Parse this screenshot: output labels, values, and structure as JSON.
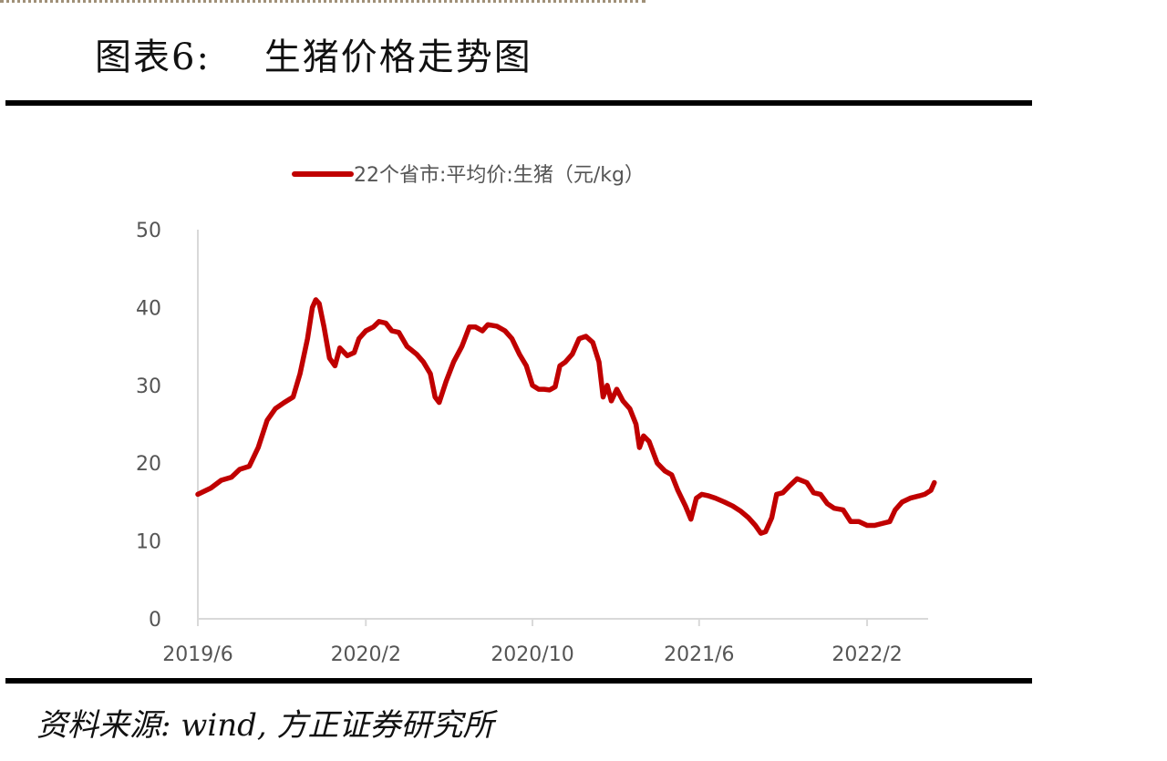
{
  "header": {
    "figure_title": "图表6:    生猪价格走势图"
  },
  "footer": {
    "source": "资料来源: wind, 方正证券研究所"
  },
  "chart_data": {
    "type": "line",
    "title": "",
    "xlabel": "",
    "ylabel": "",
    "ylim": [
      0,
      50
    ],
    "yticks": [
      0,
      10,
      20,
      30,
      40,
      50
    ],
    "xlim": [
      "2019-06",
      "2022-05"
    ],
    "xticks": [
      {
        "date": "2019-06",
        "label": "2019/6"
      },
      {
        "date": "2020-02",
        "label": "2020/2"
      },
      {
        "date": "2020-10",
        "label": "2020/10"
      },
      {
        "date": "2021-06",
        "label": "2021/6"
      },
      {
        "date": "2022-02",
        "label": "2022/2"
      }
    ],
    "grid": false,
    "legend_position": "top",
    "series": [
      {
        "name": "22个省市:平均价:生猪（元/kg）",
        "color": "#c00000",
        "points": [
          [
            "2019-06-01",
            16.0
          ],
          [
            "2019-06-20",
            16.8
          ],
          [
            "2019-07-05",
            17.8
          ],
          [
            "2019-07-20",
            18.2
          ],
          [
            "2019-08-01",
            19.2
          ],
          [
            "2019-08-15",
            19.6
          ],
          [
            "2019-08-28",
            22.0
          ],
          [
            "2019-09-10",
            25.5
          ],
          [
            "2019-09-22",
            27.0
          ],
          [
            "2019-10-05",
            27.8
          ],
          [
            "2019-10-18",
            28.5
          ],
          [
            "2019-10-28",
            31.5
          ],
          [
            "2019-11-08",
            36.0
          ],
          [
            "2019-11-15",
            40.0
          ],
          [
            "2019-11-20",
            41.0
          ],
          [
            "2019-11-25",
            40.5
          ],
          [
            "2019-12-02",
            37.5
          ],
          [
            "2019-12-10",
            33.5
          ],
          [
            "2019-12-18",
            32.5
          ],
          [
            "2019-12-25",
            34.8
          ],
          [
            "2020-01-05",
            33.8
          ],
          [
            "2020-01-15",
            34.2
          ],
          [
            "2020-01-22",
            36.0
          ],
          [
            "2020-02-01",
            37.0
          ],
          [
            "2020-02-12",
            37.5
          ],
          [
            "2020-02-20",
            38.2
          ],
          [
            "2020-03-01",
            38.0
          ],
          [
            "2020-03-10",
            37.0
          ],
          [
            "2020-03-20",
            36.8
          ],
          [
            "2020-04-01",
            35.0
          ],
          [
            "2020-04-15",
            34.0
          ],
          [
            "2020-04-25",
            33.0
          ],
          [
            "2020-05-05",
            31.5
          ],
          [
            "2020-05-12",
            28.5
          ],
          [
            "2020-05-18",
            27.8
          ],
          [
            "2020-05-28",
            30.5
          ],
          [
            "2020-06-08",
            33.0
          ],
          [
            "2020-06-20",
            35.0
          ],
          [
            "2020-07-01",
            37.5
          ],
          [
            "2020-07-10",
            37.5
          ],
          [
            "2020-07-20",
            37.0
          ],
          [
            "2020-07-28",
            37.8
          ],
          [
            "2020-08-10",
            37.6
          ],
          [
            "2020-08-22",
            37.0
          ],
          [
            "2020-09-01",
            36.0
          ],
          [
            "2020-09-12",
            34.0
          ],
          [
            "2020-09-22",
            32.5
          ],
          [
            "2020-10-01",
            30.0
          ],
          [
            "2020-10-10",
            29.5
          ],
          [
            "2020-10-18",
            29.5
          ],
          [
            "2020-10-26",
            29.4
          ],
          [
            "2020-11-03",
            29.8
          ],
          [
            "2020-11-10",
            32.5
          ],
          [
            "2020-11-18",
            33.0
          ],
          [
            "2020-11-28",
            34.0
          ],
          [
            "2020-12-08",
            36.0
          ],
          [
            "2020-12-18",
            36.3
          ],
          [
            "2020-12-28",
            35.5
          ],
          [
            "2021-01-06",
            33.0
          ],
          [
            "2021-01-12",
            28.5
          ],
          [
            "2021-01-18",
            30.0
          ],
          [
            "2021-01-24",
            28.0
          ],
          [
            "2021-02-01",
            29.5
          ],
          [
            "2021-02-10",
            28.0
          ],
          [
            "2021-02-20",
            27.0
          ],
          [
            "2021-03-01",
            25.0
          ],
          [
            "2021-03-06",
            22.0
          ],
          [
            "2021-03-12",
            23.5
          ],
          [
            "2021-03-20",
            22.8
          ],
          [
            "2021-04-01",
            20.0
          ],
          [
            "2021-04-12",
            19.0
          ],
          [
            "2021-04-22",
            18.5
          ],
          [
            "2021-05-01",
            16.5
          ],
          [
            "2021-05-12",
            14.5
          ],
          [
            "2021-05-20",
            12.8
          ],
          [
            "2021-05-28",
            15.5
          ],
          [
            "2021-06-05",
            16.0
          ],
          [
            "2021-06-15",
            15.8
          ],
          [
            "2021-06-25",
            15.5
          ],
          [
            "2021-07-08",
            15.0
          ],
          [
            "2021-07-20",
            14.5
          ],
          [
            "2021-08-01",
            13.8
          ],
          [
            "2021-08-12",
            13.0
          ],
          [
            "2021-08-22",
            12.0
          ],
          [
            "2021-08-30",
            11.0
          ],
          [
            "2021-09-06",
            11.2
          ],
          [
            "2021-09-15",
            13.0
          ],
          [
            "2021-09-22",
            16.0
          ],
          [
            "2021-10-01",
            16.2
          ],
          [
            "2021-10-10",
            17.0
          ],
          [
            "2021-10-22",
            18.0
          ],
          [
            "2021-11-05",
            17.5
          ],
          [
            "2021-11-15",
            16.2
          ],
          [
            "2021-11-25",
            16.0
          ],
          [
            "2021-12-05",
            14.8
          ],
          [
            "2021-12-15",
            14.2
          ],
          [
            "2021-12-28",
            14.0
          ],
          [
            "2022-01-08",
            12.5
          ],
          [
            "2022-01-20",
            12.5
          ],
          [
            "2022-02-01",
            12.0
          ],
          [
            "2022-02-12",
            12.0
          ],
          [
            "2022-02-25",
            12.3
          ],
          [
            "2022-03-06",
            12.5
          ],
          [
            "2022-03-14",
            14.0
          ],
          [
            "2022-03-24",
            15.0
          ],
          [
            "2022-04-05",
            15.5
          ],
          [
            "2022-04-18",
            15.8
          ],
          [
            "2022-04-26",
            16.0
          ],
          [
            "2022-05-05",
            16.5
          ],
          [
            "2022-05-10",
            17.5
          ]
        ]
      }
    ]
  }
}
